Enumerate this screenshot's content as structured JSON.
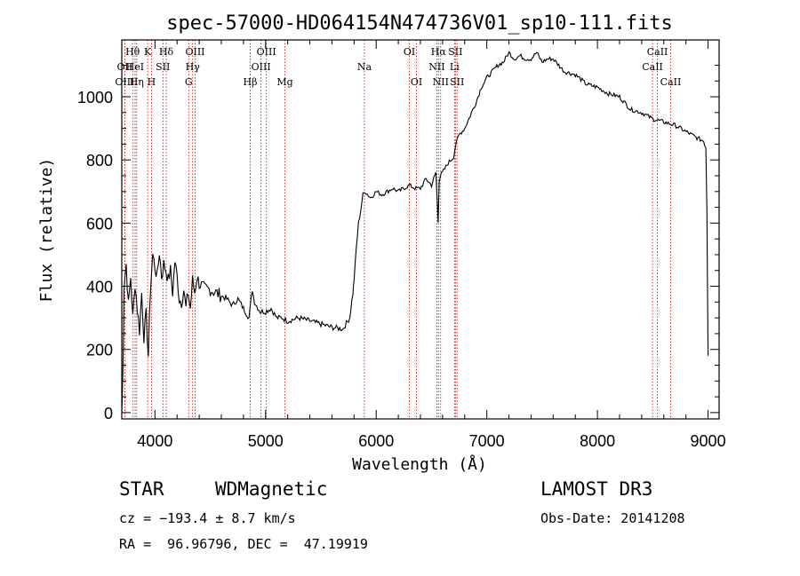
{
  "chart_data": {
    "type": "line",
    "title": "spec-57000-HD064154N474736V01_sp10-111.fits",
    "xlabel": "Wavelength (Å)",
    "ylabel": "Flux (relative)",
    "xlim": [
      3700,
      9100
    ],
    "ylim": [
      -20,
      1180
    ],
    "x_ticks": [
      4000,
      5000,
      6000,
      7000,
      8000,
      9000
    ],
    "y_ticks": [
      0,
      200,
      400,
      600,
      800,
      1000
    ],
    "grid": false,
    "line_color": "#000000",
    "marker_color": "#cc0000",
    "series": [
      {
        "x": [
          3700,
          3710,
          3720,
          3740,
          3760,
          3780,
          3800,
          3820,
          3840,
          3860,
          3880,
          3900,
          3920,
          3940,
          3960,
          3980,
          4000,
          4020,
          4040,
          4060,
          4080,
          4100,
          4120,
          4140,
          4160,
          4180,
          4200,
          4220,
          4240,
          4260,
          4280,
          4300,
          4320,
          4340,
          4360,
          4380,
          4400,
          4450,
          4500,
          4550,
          4600,
          4650,
          4700,
          4750,
          4800,
          4850,
          4880,
          4900,
          4950,
          5000,
          5050,
          5100,
          5150,
          5200,
          5300,
          5400,
          5500,
          5600,
          5700,
          5760,
          5790,
          5800,
          5820,
          5840,
          5860,
          5880,
          5900,
          5950,
          6000,
          6050,
          6100,
          6150,
          6200,
          6250,
          6300,
          6350,
          6400,
          6450,
          6500,
          6540,
          6560,
          6570,
          6580,
          6600,
          6650,
          6700,
          6720,
          6750,
          6800,
          6850,
          6900,
          6950,
          7000,
          7050,
          7100,
          7150,
          7200,
          7250,
          7300,
          7350,
          7400,
          7450,
          7500,
          7550,
          7600,
          7650,
          7700,
          7800,
          7900,
          8000,
          8100,
          8200,
          8300,
          8400,
          8500,
          8600,
          8700,
          8800,
          8900,
          8960,
          8980,
          8990,
          9000
        ],
        "y": [
          0,
          120,
          400,
          470,
          340,
          430,
          300,
          410,
          330,
          260,
          380,
          240,
          310,
          180,
          400,
          500,
          460,
          430,
          510,
          430,
          470,
          450,
          420,
          450,
          380,
          480,
          430,
          360,
          350,
          390,
          330,
          380,
          330,
          420,
          380,
          430,
          410,
          390,
          390,
          380,
          370,
          360,
          340,
          360,
          330,
          300,
          390,
          350,
          320,
          320,
          330,
          300,
          300,
          290,
          300,
          290,
          280,
          270,
          265,
          300,
          380,
          420,
          520,
          600,
          640,
          690,
          700,
          680,
          700,
          690,
          700,
          710,
          700,
          710,
          720,
          710,
          710,
          740,
          720,
          760,
          600,
          740,
          750,
          760,
          790,
          810,
          850,
          880,
          900,
          940,
          980,
          1030,
          1060,
          1080,
          1100,
          1110,
          1140,
          1120,
          1130,
          1120,
          1120,
          1140,
          1110,
          1120,
          1120,
          1100,
          1080,
          1070,
          1040,
          1030,
          1010,
          1000,
          960,
          950,
          930,
          920,
          910,
          890,
          870,
          860,
          840,
          640,
          180
        ]
      }
    ],
    "line_markers": [
      {
        "label": "OII",
        "x": 3727,
        "row": 1
      },
      {
        "label": "OIII",
        "x": 3727,
        "row": 2
      },
      {
        "label": "Hθ",
        "x": 3798,
        "row": 0
      },
      {
        "label": "HeI",
        "x": 3820,
        "row": 1
      },
      {
        "label": "Hη",
        "x": 3835,
        "row": 2
      },
      {
        "label": "K",
        "x": 3934,
        "row": 0
      },
      {
        "label": "H",
        "x": 3969,
        "row": 2
      },
      {
        "label": "SII",
        "x": 4072,
        "row": 1
      },
      {
        "label": "Hδ",
        "x": 4102,
        "row": 0
      },
      {
        "label": "OIII",
        "x": 4363,
        "row": 0
      },
      {
        "label": "Hγ",
        "x": 4341,
        "row": 1
      },
      {
        "label": "G",
        "x": 4305,
        "row": 2
      },
      {
        "label": "Hβ",
        "x": 4861,
        "row": 2
      },
      {
        "label": "OIII",
        "x": 5007,
        "row": 0
      },
      {
        "label": "OIII",
        "x": 4959,
        "row": 1
      },
      {
        "label": "Mg",
        "x": 5175,
        "row": 2
      },
      {
        "label": "Na",
        "x": 5893,
        "row": 1
      },
      {
        "label": "OI",
        "x": 6300,
        "row": 0
      },
      {
        "label": "OI",
        "x": 6364,
        "row": 2
      },
      {
        "label": "Hα",
        "x": 6563,
        "row": 0
      },
      {
        "label": "NII",
        "x": 6548,
        "row": 1
      },
      {
        "label": "NII",
        "x": 6583,
        "row": 2
      },
      {
        "label": "SII",
        "x": 6716,
        "row": 0
      },
      {
        "label": "Li",
        "x": 6708,
        "row": 1
      },
      {
        "label": "SII",
        "x": 6731,
        "row": 2
      },
      {
        "label": "CaII",
        "x": 8542,
        "row": 0
      },
      {
        "label": "CaII",
        "x": 8498,
        "row": 1
      },
      {
        "label": "CaII",
        "x": 8662,
        "row": 2
      }
    ]
  },
  "info": {
    "object_class": "STAR",
    "subclass": "WDMagnetic",
    "survey": "LAMOST DR3",
    "cz": "cz = −193.4 ± 8.7 km/s",
    "obs_date": "Obs-Date: 20141208",
    "coords": "RA =  96.96796, DEC =  47.19919"
  }
}
